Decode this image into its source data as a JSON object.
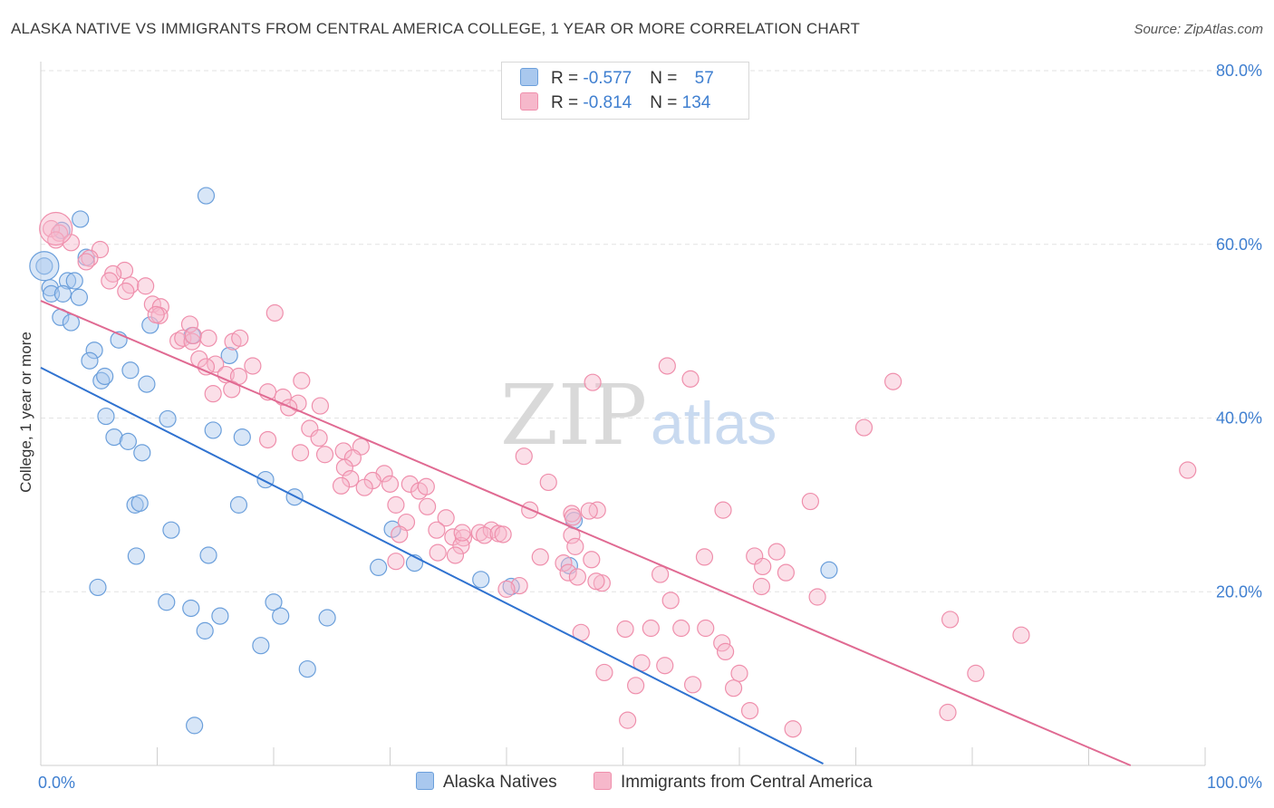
{
  "title": "ALASKA NATIVE VS IMMIGRANTS FROM CENTRAL AMERICA COLLEGE, 1 YEAR OR MORE CORRELATION CHART",
  "source": "Source: ZipAtlas.com",
  "watermark": {
    "zip": "ZIP",
    "atlas": "atlas"
  },
  "legend": {
    "series1": {
      "r_label": "R = ",
      "r_value": "-0.577",
      "n_label": "N = ",
      "n_value": "57"
    },
    "series2": {
      "r_label": "R = ",
      "r_value": "-0.814",
      "n_label": "N = ",
      "n_value": "134"
    }
  },
  "colors": {
    "blue_fill": "#a9c8ee",
    "blue_stroke": "#6b9fdb",
    "blue_line": "#2f72d0",
    "pink_fill": "#f6b8cb",
    "pink_stroke": "#ef8fac",
    "pink_line": "#e06a92"
  },
  "chart_data": {
    "type": "scatter",
    "title": "ALASKA NATIVE VS IMMIGRANTS FROM CENTRAL AMERICA COLLEGE, 1 YEAR OR MORE CORRELATION CHART",
    "xlabel": "",
    "ylabel": "College, 1 year or more",
    "xlim": [
      0,
      100
    ],
    "ylim": [
      0,
      80
    ],
    "x_tick_labels": [
      "0.0%",
      "100.0%"
    ],
    "y_ticks": [
      20,
      40,
      60,
      80
    ],
    "y_tick_labels": [
      "20.0%",
      "40.0%",
      "60.0%",
      "80.0%"
    ],
    "grid": true,
    "legend_position": "top-center",
    "series": [
      {
        "name": "Alaska Natives",
        "color": "#a9c8ee",
        "trend": {
          "x": [
            0,
            67.2
          ],
          "y": [
            45.8,
            0.2
          ]
        },
        "points": [
          [
            0.3,
            57.5
          ],
          [
            0.8,
            55.0
          ],
          [
            0.9,
            54.3
          ],
          [
            1.7,
            51.6
          ],
          [
            3.4,
            62.9
          ],
          [
            1.8,
            61.6
          ],
          [
            3.9,
            58.5
          ],
          [
            3.3,
            53.9
          ],
          [
            2.3,
            55.8
          ],
          [
            2.9,
            55.8
          ],
          [
            1.9,
            54.3
          ],
          [
            2.6,
            51.0
          ],
          [
            4.6,
            47.8
          ],
          [
            4.2,
            46.6
          ],
          [
            5.2,
            44.3
          ],
          [
            5.5,
            44.8
          ],
          [
            6.7,
            49.0
          ],
          [
            7.7,
            45.5
          ],
          [
            5.6,
            40.2
          ],
          [
            6.3,
            37.8
          ],
          [
            7.5,
            37.3
          ],
          [
            8.7,
            36.0
          ],
          [
            9.1,
            43.9
          ],
          [
            9.4,
            50.7
          ],
          [
            10.9,
            39.9
          ],
          [
            14.2,
            65.6
          ],
          [
            13.0,
            49.5
          ],
          [
            16.2,
            47.2
          ],
          [
            14.8,
            38.6
          ],
          [
            17.3,
            37.8
          ],
          [
            19.3,
            32.9
          ],
          [
            21.8,
            30.9
          ],
          [
            8.1,
            30.0
          ],
          [
            8.5,
            30.2
          ],
          [
            11.2,
            27.1
          ],
          [
            8.2,
            24.1
          ],
          [
            14.4,
            24.2
          ],
          [
            17.0,
            30.0
          ],
          [
            4.9,
            20.5
          ],
          [
            10.8,
            18.8
          ],
          [
            12.9,
            18.1
          ],
          [
            15.4,
            17.2
          ],
          [
            14.1,
            15.5
          ],
          [
            20.0,
            18.8
          ],
          [
            20.6,
            17.2
          ],
          [
            24.6,
            17.0
          ],
          [
            18.9,
            13.8
          ],
          [
            22.9,
            11.1
          ],
          [
            13.2,
            4.6
          ],
          [
            29.0,
            22.8
          ],
          [
            30.2,
            27.2
          ],
          [
            32.1,
            23.3
          ],
          [
            40.4,
            20.6
          ],
          [
            37.8,
            21.4
          ],
          [
            45.4,
            23.0
          ],
          [
            45.8,
            28.2
          ],
          [
            67.7,
            22.5
          ]
        ]
      },
      {
        "name": "Immigrants from Central America",
        "color": "#f6b8cb",
        "trend": {
          "x": [
            0,
            93.6
          ],
          "y": [
            53.5,
            0
          ]
        },
        "points": [
          [
            0.9,
            61.8
          ],
          [
            1.6,
            61.3
          ],
          [
            1.3,
            60.5
          ],
          [
            2.6,
            60.2
          ],
          [
            5.1,
            59.4
          ],
          [
            4.2,
            58.4
          ],
          [
            3.9,
            58.0
          ],
          [
            7.2,
            57.0
          ],
          [
            6.2,
            56.6
          ],
          [
            5.9,
            55.8
          ],
          [
            7.7,
            55.3
          ],
          [
            9.0,
            55.2
          ],
          [
            7.3,
            54.6
          ],
          [
            9.6,
            53.1
          ],
          [
            10.3,
            52.8
          ],
          [
            10.2,
            51.8
          ],
          [
            20.1,
            52.1
          ],
          [
            9.9,
            51.9
          ],
          [
            12.8,
            50.8
          ],
          [
            11.8,
            48.9
          ],
          [
            12.2,
            49.2
          ],
          [
            13.0,
            48.8
          ],
          [
            13.1,
            49.5
          ],
          [
            14.4,
            49.2
          ],
          [
            16.5,
            48.8
          ],
          [
            17.1,
            49.2
          ],
          [
            13.6,
            46.8
          ],
          [
            15.0,
            46.2
          ],
          [
            14.2,
            45.9
          ],
          [
            15.9,
            45.0
          ],
          [
            18.2,
            46.0
          ],
          [
            17.0,
            44.8
          ],
          [
            16.4,
            43.3
          ],
          [
            19.5,
            43.0
          ],
          [
            22.4,
            44.3
          ],
          [
            14.8,
            42.8
          ],
          [
            20.8,
            42.4
          ],
          [
            22.1,
            41.7
          ],
          [
            21.3,
            41.2
          ],
          [
            24.0,
            41.4
          ],
          [
            23.1,
            38.8
          ],
          [
            19.5,
            37.5
          ],
          [
            22.3,
            36.0
          ],
          [
            23.9,
            37.7
          ],
          [
            24.4,
            35.8
          ],
          [
            26.0,
            36.2
          ],
          [
            27.5,
            36.7
          ],
          [
            26.8,
            35.4
          ],
          [
            26.1,
            34.3
          ],
          [
            29.5,
            33.6
          ],
          [
            26.6,
            33.0
          ],
          [
            28.5,
            32.8
          ],
          [
            25.8,
            32.2
          ],
          [
            27.8,
            32.0
          ],
          [
            30.0,
            32.4
          ],
          [
            31.7,
            32.4
          ],
          [
            32.5,
            31.6
          ],
          [
            33.1,
            32.1
          ],
          [
            30.5,
            30.0
          ],
          [
            33.2,
            29.8
          ],
          [
            31.4,
            28.0
          ],
          [
            34.8,
            28.5
          ],
          [
            34.0,
            27.1
          ],
          [
            30.8,
            26.6
          ],
          [
            35.4,
            26.3
          ],
          [
            36.3,
            26.2
          ],
          [
            37.7,
            26.8
          ],
          [
            38.7,
            27.1
          ],
          [
            38.1,
            26.5
          ],
          [
            39.3,
            26.7
          ],
          [
            36.1,
            25.3
          ],
          [
            34.1,
            24.5
          ],
          [
            35.6,
            24.2
          ],
          [
            39.7,
            26.6
          ],
          [
            36.2,
            26.8
          ],
          [
            30.5,
            23.5
          ],
          [
            41.5,
            35.6
          ],
          [
            43.6,
            32.6
          ],
          [
            42.0,
            29.4
          ],
          [
            45.6,
            29.0
          ],
          [
            47.8,
            29.4
          ],
          [
            47.1,
            29.3
          ],
          [
            45.7,
            28.6
          ],
          [
            45.6,
            26.5
          ],
          [
            45.9,
            25.2
          ],
          [
            42.9,
            24.0
          ],
          [
            44.9,
            23.3
          ],
          [
            47.3,
            23.7
          ],
          [
            45.3,
            22.2
          ],
          [
            46.1,
            21.7
          ],
          [
            48.2,
            21.0
          ],
          [
            47.7,
            21.2
          ],
          [
            41.1,
            20.7
          ],
          [
            40.0,
            20.3
          ],
          [
            47.4,
            44.1
          ],
          [
            53.8,
            46.0
          ],
          [
            55.8,
            44.5
          ],
          [
            57.0,
            24.0
          ],
          [
            61.3,
            24.1
          ],
          [
            63.2,
            24.6
          ],
          [
            62.0,
            22.9
          ],
          [
            64.0,
            22.2
          ],
          [
            61.9,
            20.6
          ],
          [
            53.2,
            22.0
          ],
          [
            58.6,
            29.4
          ],
          [
            66.1,
            30.4
          ],
          [
            66.7,
            19.4
          ],
          [
            54.1,
            19.0
          ],
          [
            46.4,
            15.3
          ],
          [
            50.2,
            15.7
          ],
          [
            52.4,
            15.8
          ],
          [
            55.0,
            15.8
          ],
          [
            57.1,
            15.8
          ],
          [
            58.5,
            14.1
          ],
          [
            58.8,
            13.1
          ],
          [
            48.4,
            10.7
          ],
          [
            51.6,
            11.8
          ],
          [
            53.6,
            11.5
          ],
          [
            51.1,
            9.2
          ],
          [
            56.0,
            9.3
          ],
          [
            60.0,
            10.6
          ],
          [
            59.5,
            8.9
          ],
          [
            60.9,
            6.3
          ],
          [
            50.4,
            5.2
          ],
          [
            64.6,
            4.2
          ],
          [
            73.2,
            44.2
          ],
          [
            70.7,
            38.9
          ],
          [
            78.1,
            16.8
          ],
          [
            84.2,
            15.0
          ],
          [
            80.3,
            10.6
          ],
          [
            77.9,
            6.1
          ],
          [
            98.5,
            34.0
          ]
        ]
      }
    ]
  }
}
